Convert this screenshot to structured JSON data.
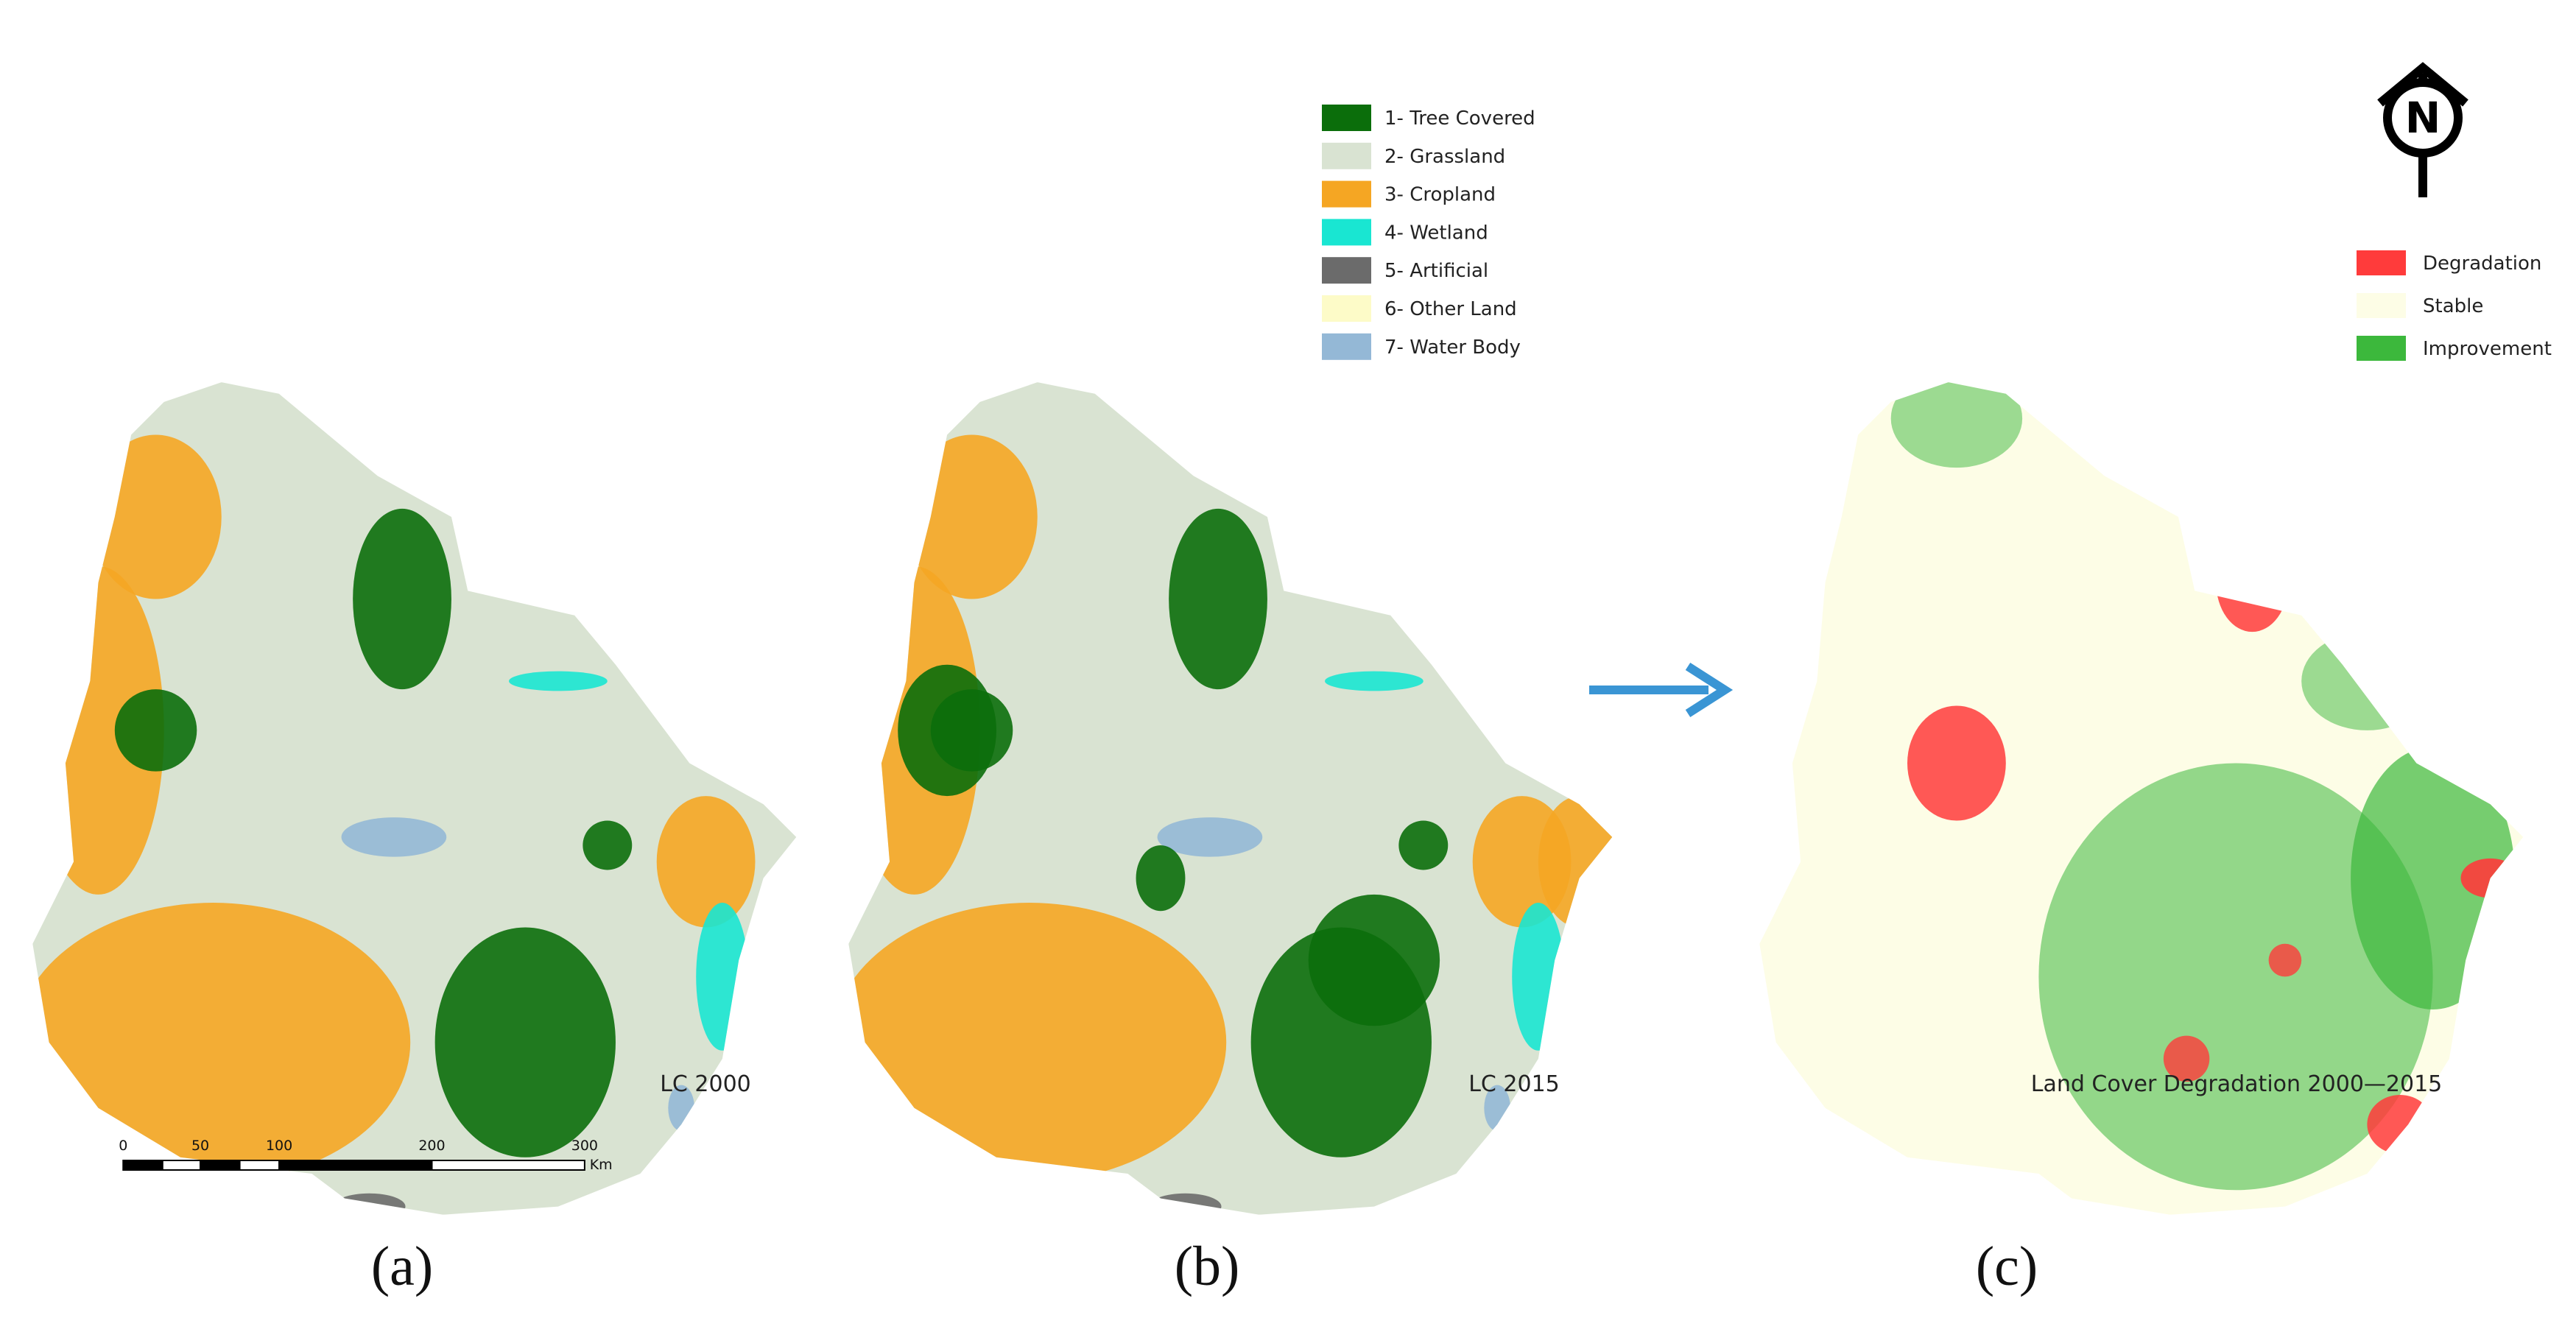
{
  "figure": {
    "north_label": "N",
    "panels": [
      {
        "caption": "(a)",
        "map_label": "LC 2000"
      },
      {
        "caption": "(b)",
        "map_label": "LC 2015"
      },
      {
        "caption": "(c)",
        "map_label": "Land Cover Degradation 2000—2015"
      }
    ],
    "land_cover_legend": [
      {
        "label": "1- Tree Covered",
        "color": "#0b6e0b"
      },
      {
        "label": "2- Grassland",
        "color": "#d9e3d2"
      },
      {
        "label": "3- Cropland",
        "color": "#f5a623"
      },
      {
        "label": "4- Wetland",
        "color": "#19e6d2"
      },
      {
        "label": "5- Artificial",
        "color": "#6b6b6b"
      },
      {
        "label": "6- Other Land",
        "color": "#fdfbc8"
      },
      {
        "label": "7- Water Body",
        "color": "#94b8d6"
      }
    ],
    "degradation_legend": [
      {
        "label": "Degradation",
        "color": "#ff3b3b"
      },
      {
        "label": "Stable",
        "color": "#fdfde6"
      },
      {
        "label": "Improvement",
        "color": "#3cb83c"
      }
    ],
    "scale_bar": {
      "labels": [
        "0",
        "50",
        "100",
        "200",
        "300"
      ],
      "unit": "Km"
    }
  }
}
